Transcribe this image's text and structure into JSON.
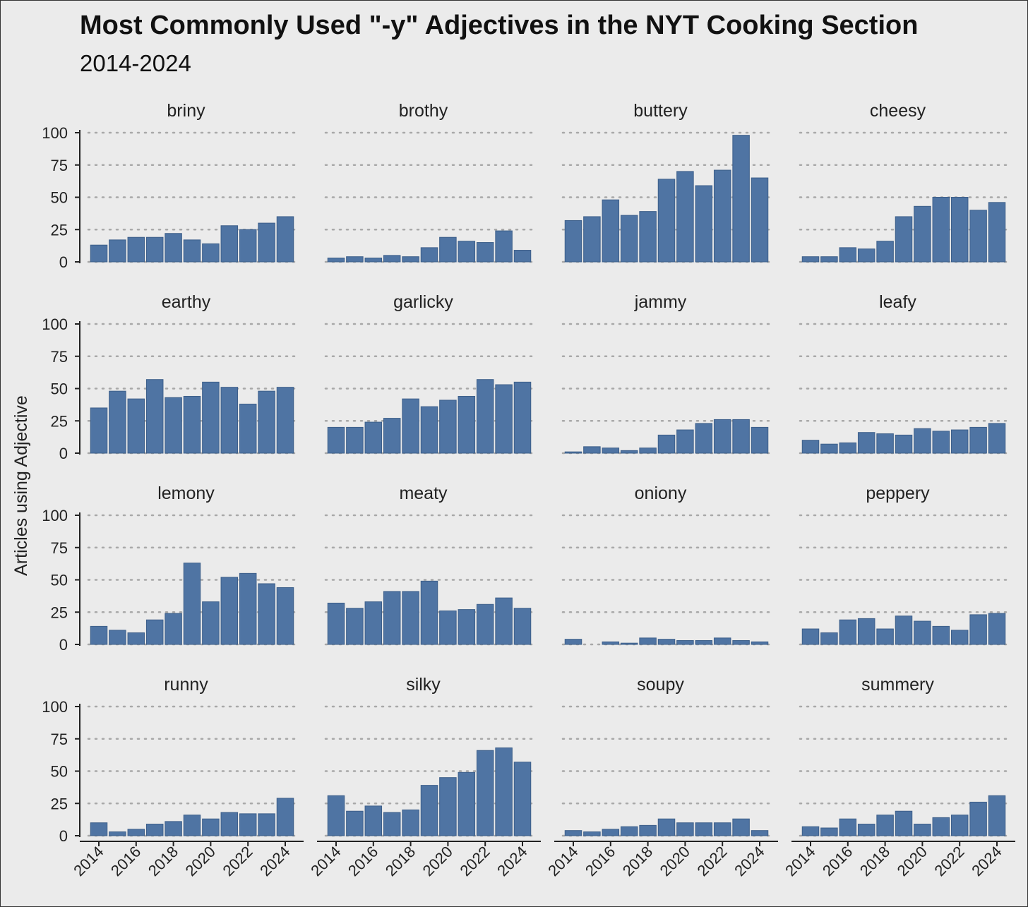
{
  "chart_data": {
    "type": "bar",
    "title": "Most Commonly Used \"-y\" Adjectives in the NYT Cooking Section",
    "subtitle": "2014-2024",
    "ylabel": "Articles using Adjective",
    "xlabel": "",
    "ylim": [
      0,
      100
    ],
    "yticks": [
      "0",
      "25",
      "50",
      "75",
      "100"
    ],
    "x": [
      2014,
      2015,
      2016,
      2017,
      2018,
      2019,
      2020,
      2021,
      2022,
      2023,
      2024
    ],
    "xticks": [
      "2014",
      "2016",
      "2018",
      "2020",
      "2022",
      "2024"
    ],
    "grid": "horizontal dotted",
    "bar_color": "#4f74a3",
    "series": [
      {
        "name": "briny",
        "values": [
          13,
          17,
          19,
          19,
          22,
          17,
          14,
          28,
          25,
          30,
          35
        ]
      },
      {
        "name": "brothy",
        "values": [
          3,
          4,
          3,
          5,
          4,
          11,
          19,
          16,
          15,
          24,
          9
        ]
      },
      {
        "name": "buttery",
        "values": [
          32,
          35,
          48,
          36,
          39,
          64,
          70,
          59,
          71,
          98,
          65
        ]
      },
      {
        "name": "cheesy",
        "values": [
          4,
          4,
          11,
          10,
          16,
          35,
          43,
          50,
          50,
          40,
          46
        ]
      },
      {
        "name": "earthy",
        "values": [
          35,
          48,
          42,
          57,
          43,
          44,
          55,
          51,
          38,
          48,
          51
        ]
      },
      {
        "name": "garlicky",
        "values": [
          20,
          20,
          24,
          27,
          42,
          36,
          41,
          44,
          57,
          53,
          55
        ]
      },
      {
        "name": "jammy",
        "values": [
          1,
          5,
          4,
          2,
          4,
          14,
          18,
          23,
          26,
          26,
          20
        ]
      },
      {
        "name": "leafy",
        "values": [
          10,
          7,
          8,
          16,
          15,
          14,
          19,
          17,
          18,
          20,
          23
        ]
      },
      {
        "name": "lemony",
        "values": [
          14,
          11,
          9,
          19,
          24,
          63,
          33,
          52,
          55,
          47,
          44
        ]
      },
      {
        "name": "meaty",
        "values": [
          32,
          28,
          33,
          41,
          41,
          49,
          26,
          27,
          31,
          36,
          28
        ]
      },
      {
        "name": "oniony",
        "values": [
          4,
          0,
          2,
          1,
          5,
          4,
          3,
          3,
          5,
          3,
          2
        ]
      },
      {
        "name": "peppery",
        "values": [
          12,
          9,
          19,
          20,
          12,
          22,
          18,
          14,
          11,
          23,
          24
        ]
      },
      {
        "name": "runny",
        "values": [
          10,
          3,
          5,
          9,
          11,
          16,
          13,
          18,
          17,
          17,
          29
        ]
      },
      {
        "name": "silky",
        "values": [
          31,
          19,
          23,
          18,
          20,
          39,
          45,
          49,
          66,
          68,
          57
        ]
      },
      {
        "name": "soupy",
        "values": [
          4,
          3,
          5,
          7,
          8,
          13,
          10,
          10,
          10,
          13,
          4
        ]
      },
      {
        "name": "summery",
        "values": [
          7,
          6,
          13,
          9,
          16,
          19,
          9,
          14,
          16,
          26,
          31
        ]
      }
    ]
  }
}
